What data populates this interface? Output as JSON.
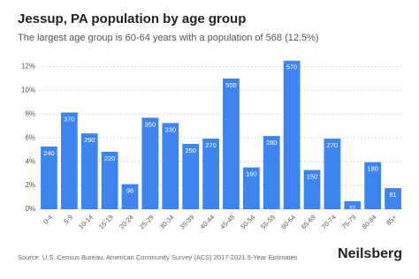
{
  "chart_data": {
    "type": "bar",
    "title": "Jessup, PA population by age group",
    "subtitle": "The largest age group is 60-64 years with a population of 568 (12.5%)",
    "categories": [
      "0-4",
      "5-9",
      "10-14",
      "15-19",
      "20-24",
      "25-29",
      "30-34",
      "35-39",
      "40-44",
      "45-49",
      "50-54",
      "55-59",
      "60-64",
      "65-69",
      "70-74",
      "75-79",
      "80-84",
      "85+"
    ],
    "values": [
      5.28,
      8.14,
      6.38,
      4.84,
      2.11,
      7.7,
      7.26,
      5.5,
      5.94,
      11.0,
      3.52,
      6.16,
      12.5,
      3.3,
      5.94,
      0.68,
      3.96,
      1.78
    ],
    "population": [
      240,
      370,
      290,
      220,
      96,
      350,
      330,
      250,
      270,
      500,
      160,
      280,
      570,
      150,
      270,
      31,
      180,
      81
    ],
    "color": "#3d84ef",
    "ylim": [
      0,
      13
    ],
    "yticks": [
      {
        "value": 0,
        "label": "0%"
      },
      {
        "value": 2,
        "label": "2%"
      },
      {
        "value": 4,
        "label": "4%"
      },
      {
        "value": 6,
        "label": "6%"
      },
      {
        "value": 8,
        "label": "8%"
      },
      {
        "value": 10,
        "label": "10%"
      },
      {
        "value": 12,
        "label": "12%"
      }
    ],
    "grid": true,
    "source": "Source: U.S. Census Bureau, American Community Survey (ACS) 2017-2021 5-Year Estimates",
    "brand": "Neilsberg"
  }
}
